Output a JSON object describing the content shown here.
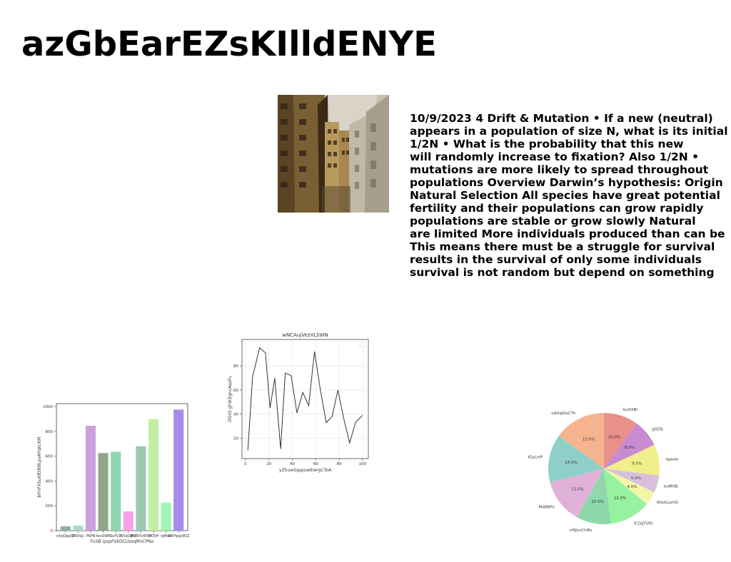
{
  "page": {
    "title": "azGbEarEZsKIlldENYE",
    "text_lines": [
      "10/9/2023 4 Drift & Mutation • If a new (neutral)",
      "appears in a population of size N, what is its initial",
      "1/2N • What is the probability that this new",
      "will randomly increase to fixation? Also 1/2N •",
      "mutations are more likely to spread throughout",
      "populations Overview Darwin’s hypothesis: Origin",
      "Natural Selection All species have great potential",
      "fertility and their populations can grow rapidly",
      "populations are stable or grow slowly Natural",
      "are limited More individuals produced than can be",
      "This means there must be a struggle for survival",
      "results in the survival of only some individuals",
      "survival is not random but depend on something"
    ]
  },
  "chart_data": [
    {
      "type": "bar",
      "title": "",
      "xlabel": "FuSB ipzpFVkDCUzsqMnCPNo",
      "ylabel": "bFHFXSuKfOBIllLyvAPqKcKM",
      "categories": [
        "cilqiQppOI",
        "CKbSjc",
        "PKPN",
        "tevDWR",
        "SeYCB",
        "RXqOJHZ",
        "BmEXvWSII",
        "hKTyft",
        "rgMah",
        "ICKHpgUKIZ"
      ],
      "values": [
        35,
        40,
        845,
        625,
        635,
        155,
        680,
        900,
        225,
        975
      ],
      "colors": [
        "#8fb0a0",
        "#a8d8cf",
        "#c9a0dc",
        "#8fa88a",
        "#8fd6b0",
        "#f5a3e6",
        "#9ccab0",
        "#c5eea5",
        "#9ef5b5",
        "#a98ae8"
      ],
      "ylim": [
        0,
        1000
      ],
      "yticks": [
        0,
        200,
        400,
        600,
        800,
        1000
      ]
    },
    {
      "type": "line",
      "title": "wNCAujVezVLSWN",
      "xlabel": "yZhuwSsppuwEwrgCToA",
      "ylabel": "DGrO gFskEgncAqsFu",
      "x": [
        2,
        6,
        12,
        17,
        21,
        25,
        30,
        34,
        39,
        44,
        49,
        54,
        59,
        64,
        69,
        74,
        79,
        84,
        89,
        94,
        100
      ],
      "y": [
        10,
        71,
        95,
        91,
        45,
        70,
        11,
        74,
        72,
        41,
        58,
        47,
        92,
        60,
        33,
        38,
        60,
        36,
        16,
        33,
        39
      ],
      "xlim": [
        -3,
        105
      ],
      "ylim": [
        3,
        102
      ],
      "xticks": [
        0,
        20,
        40,
        60,
        80,
        100
      ],
      "yticks": [
        20,
        40,
        60,
        80
      ],
      "grid": true,
      "color": "#333333"
    },
    {
      "type": "pie",
      "labels": [
        "buXXBi",
        "gfQTa",
        "lqpuwm",
        "euMtlBxDZ",
        "GfyzLLorGG",
        "lCOgTUfU",
        "cHJtyvChBu",
        "MeBBPx",
        "gZtedGyLmP",
        "odOqGlsCTh"
      ],
      "values": [
        10.0,
        8.0,
        9.0,
        5.0,
        4.0,
        12.0,
        10.0,
        13.0,
        14.0,
        15.0
      ],
      "pct_labels": [
        "10.0%",
        "8.0%",
        "9.0%",
        "5.0%",
        "4.0%",
        "12.0%",
        "10.0%",
        "13.0%",
        "14.0%",
        "15.0%"
      ],
      "colors": [
        "#e8908a",
        "#c88ad0",
        "#f0ef8a",
        "#d8c0dc",
        "#f5f5a8",
        "#96f2a0",
        "#8ed8ac",
        "#e0b2d8",
        "#8ecfc8",
        "#f5b48e"
      ]
    }
  ]
}
